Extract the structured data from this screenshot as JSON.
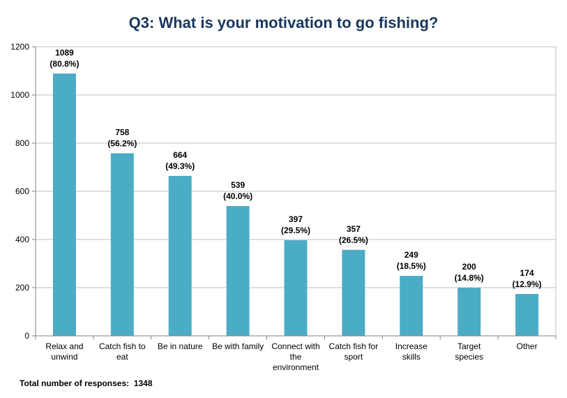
{
  "chart_data": {
    "type": "bar",
    "title": "Q3: What is your motivation to go fishing?",
    "categories": [
      [
        "Relax and",
        "unwind"
      ],
      [
        "Catch fish to",
        "eat"
      ],
      [
        "Be in nature"
      ],
      [
        "Be with family"
      ],
      [
        "Connect with",
        "the",
        "environment"
      ],
      [
        "Catch fish for",
        "sport"
      ],
      [
        "Increase",
        "skills"
      ],
      [
        "Target",
        "species"
      ],
      [
        "Other"
      ]
    ],
    "values": [
      1089,
      758,
      664,
      539,
      397,
      357,
      249,
      200,
      174
    ],
    "percent_labels": [
      "(80.8%)",
      "(56.2%)",
      "(49.3%)",
      "(40.0%)",
      "(29.5%)",
      "(26.5%)",
      "(18.5%)",
      "(14.8%)",
      "(12.9%)"
    ],
    "ylim": [
      0,
      1200
    ],
    "yticks": [
      0,
      200,
      400,
      600,
      800,
      1000,
      1200
    ],
    "grid": true,
    "bar_color": "#4bacc6",
    "grid_color": "#bfbfbf",
    "title_color": "#17375e"
  },
  "footnote": {
    "label": "Total number of responses:",
    "value": "1348"
  }
}
